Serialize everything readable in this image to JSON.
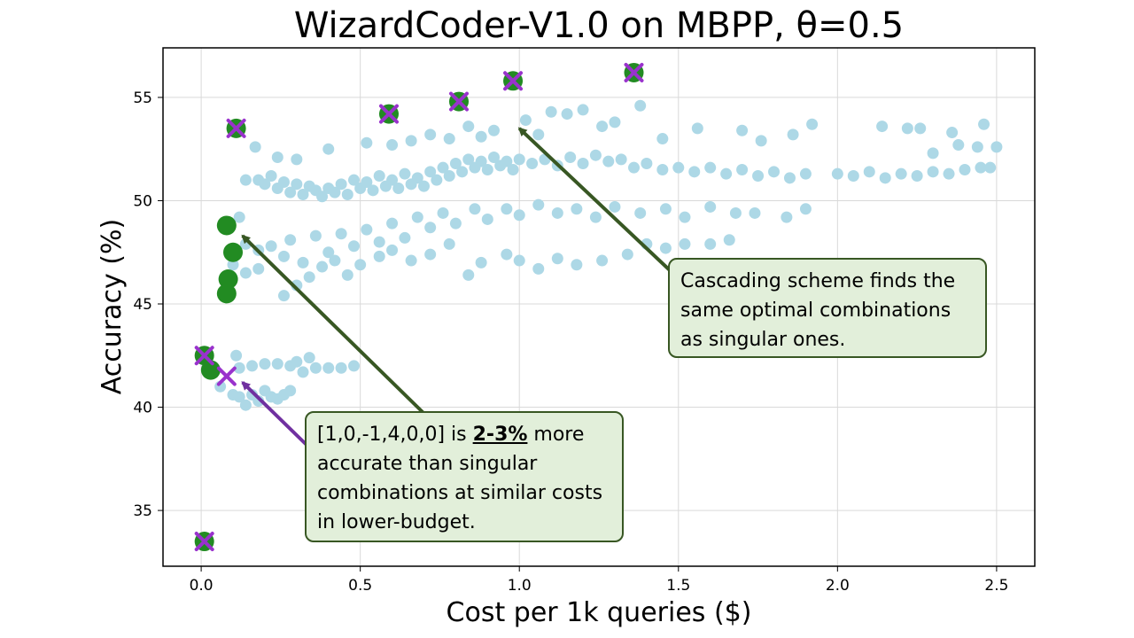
{
  "chart_data": {
    "type": "scatter",
    "title": "WizardCoder-V1.0 on MBPP, θ=0.5",
    "xlabel": "Cost per 1k queries ($)",
    "ylabel": "Accuracy (%)",
    "xlim": [
      -0.12,
      2.62
    ],
    "ylim": [
      32.3,
      57.4
    ],
    "xticks": [
      0.0,
      0.5,
      1.0,
      1.5,
      2.0,
      2.5
    ],
    "xtick_labels": [
      "0.0",
      "0.5",
      "1.0",
      "1.5",
      "2.0",
      "2.5"
    ],
    "yticks": [
      35,
      40,
      45,
      50,
      55
    ],
    "ytick_labels": [
      "35",
      "40",
      "45",
      "50",
      "55"
    ],
    "grid": true,
    "colors": {
      "background_points": "#add8e6",
      "green_points": "#228b22",
      "purple_marks": "#9932cc",
      "arrow_dark_green": "#385723",
      "arrow_purple": "#7030a0",
      "callout_fill": "#e2efda",
      "callout_border": "#385723"
    },
    "series": [
      {
        "role": "all-combinations",
        "marker": "circle",
        "color": "#add8e6",
        "points": [
          [
            0.14,
            51.0
          ],
          [
            0.18,
            51.0
          ],
          [
            0.2,
            50.8
          ],
          [
            0.22,
            51.2
          ],
          [
            0.24,
            50.6
          ],
          [
            0.26,
            50.9
          ],
          [
            0.28,
            50.4
          ],
          [
            0.3,
            50.8
          ],
          [
            0.32,
            50.3
          ],
          [
            0.34,
            50.7
          ],
          [
            0.36,
            50.5
          ],
          [
            0.38,
            50.2
          ],
          [
            0.4,
            50.6
          ],
          [
            0.42,
            50.4
          ],
          [
            0.44,
            50.8
          ],
          [
            0.46,
            50.3
          ],
          [
            0.48,
            51.0
          ],
          [
            0.5,
            50.6
          ],
          [
            0.52,
            50.9
          ],
          [
            0.54,
            50.5
          ],
          [
            0.56,
            51.2
          ],
          [
            0.58,
            50.7
          ],
          [
            0.6,
            51.0
          ],
          [
            0.62,
            50.6
          ],
          [
            0.64,
            51.3
          ],
          [
            0.66,
            50.8
          ],
          [
            0.68,
            51.1
          ],
          [
            0.7,
            50.7
          ],
          [
            0.72,
            51.4
          ],
          [
            0.74,
            51.0
          ],
          [
            0.76,
            51.6
          ],
          [
            0.78,
            51.2
          ],
          [
            0.8,
            51.8
          ],
          [
            0.82,
            51.4
          ],
          [
            0.84,
            52.0
          ],
          [
            0.86,
            51.6
          ],
          [
            0.88,
            51.9
          ],
          [
            0.9,
            51.5
          ],
          [
            0.92,
            52.1
          ],
          [
            0.94,
            51.7
          ],
          [
            0.96,
            51.9
          ],
          [
            0.98,
            51.5
          ],
          [
            1.0,
            52.0
          ],
          [
            1.04,
            51.8
          ],
          [
            1.08,
            52.0
          ],
          [
            1.12,
            51.7
          ],
          [
            1.16,
            52.1
          ],
          [
            1.2,
            51.8
          ],
          [
            1.24,
            52.2
          ],
          [
            1.28,
            51.9
          ],
          [
            1.32,
            52.0
          ],
          [
            1.36,
            51.6
          ],
          [
            1.4,
            51.8
          ],
          [
            1.45,
            51.5
          ],
          [
            1.5,
            51.6
          ],
          [
            1.55,
            51.4
          ],
          [
            1.6,
            51.6
          ],
          [
            1.65,
            51.3
          ],
          [
            1.7,
            51.5
          ],
          [
            1.75,
            51.2
          ],
          [
            1.8,
            51.4
          ],
          [
            1.85,
            51.1
          ],
          [
            1.9,
            51.3
          ],
          [
            2.0,
            51.3
          ],
          [
            2.05,
            51.2
          ],
          [
            2.1,
            51.4
          ],
          [
            2.15,
            51.1
          ],
          [
            2.2,
            51.3
          ],
          [
            2.25,
            51.2
          ],
          [
            2.3,
            51.4
          ],
          [
            2.35,
            51.3
          ],
          [
            2.4,
            51.5
          ],
          [
            2.45,
            51.6
          ],
          [
            2.48,
            51.6
          ],
          [
            0.17,
            52.6
          ],
          [
            0.24,
            52.1
          ],
          [
            0.3,
            52.0
          ],
          [
            0.4,
            52.5
          ],
          [
            0.52,
            52.8
          ],
          [
            0.6,
            52.7
          ],
          [
            0.66,
            52.9
          ],
          [
            0.72,
            53.2
          ],
          [
            0.78,
            53.0
          ],
          [
            0.84,
            53.6
          ],
          [
            0.88,
            53.1
          ],
          [
            0.92,
            53.4
          ],
          [
            1.02,
            53.9
          ],
          [
            1.06,
            53.2
          ],
          [
            1.1,
            54.3
          ],
          [
            1.15,
            54.2
          ],
          [
            1.2,
            54.4
          ],
          [
            1.26,
            53.6
          ],
          [
            1.3,
            53.8
          ],
          [
            1.38,
            54.6
          ],
          [
            1.45,
            53.0
          ],
          [
            1.56,
            53.5
          ],
          [
            1.7,
            53.4
          ],
          [
            1.76,
            52.9
          ],
          [
            1.86,
            53.2
          ],
          [
            1.92,
            53.7
          ],
          [
            2.14,
            53.6
          ],
          [
            2.22,
            53.5
          ],
          [
            2.26,
            53.5
          ],
          [
            2.36,
            53.3
          ],
          [
            2.46,
            53.7
          ],
          [
            2.38,
            52.7
          ],
          [
            2.44,
            52.6
          ],
          [
            2.5,
            52.6
          ],
          [
            2.3,
            52.3
          ],
          [
            0.12,
            49.2
          ],
          [
            0.14,
            47.9
          ],
          [
            0.18,
            47.6
          ],
          [
            0.22,
            47.8
          ],
          [
            0.26,
            47.3
          ],
          [
            0.28,
            48.1
          ],
          [
            0.32,
            47.0
          ],
          [
            0.36,
            48.3
          ],
          [
            0.4,
            47.5
          ],
          [
            0.44,
            48.4
          ],
          [
            0.48,
            47.8
          ],
          [
            0.52,
            48.6
          ],
          [
            0.56,
            48.0
          ],
          [
            0.6,
            48.9
          ],
          [
            0.64,
            48.2
          ],
          [
            0.68,
            49.2
          ],
          [
            0.72,
            48.7
          ],
          [
            0.76,
            49.4
          ],
          [
            0.8,
            48.9
          ],
          [
            0.86,
            49.6
          ],
          [
            0.9,
            49.1
          ],
          [
            0.96,
            49.6
          ],
          [
            1.0,
            49.3
          ],
          [
            1.06,
            49.8
          ],
          [
            1.12,
            49.4
          ],
          [
            1.18,
            49.6
          ],
          [
            1.24,
            49.2
          ],
          [
            1.3,
            49.7
          ],
          [
            1.38,
            49.4
          ],
          [
            1.46,
            49.6
          ],
          [
            1.52,
            49.2
          ],
          [
            1.6,
            49.7
          ],
          [
            1.68,
            49.4
          ],
          [
            1.74,
            49.4
          ],
          [
            1.84,
            49.2
          ],
          [
            1.9,
            49.6
          ],
          [
            0.1,
            46.9
          ],
          [
            0.14,
            46.5
          ],
          [
            0.18,
            46.7
          ],
          [
            0.26,
            45.4
          ],
          [
            0.3,
            45.9
          ],
          [
            0.34,
            46.3
          ],
          [
            0.38,
            46.8
          ],
          [
            0.42,
            47.1
          ],
          [
            0.46,
            46.4
          ],
          [
            0.5,
            46.9
          ],
          [
            0.56,
            47.3
          ],
          [
            0.6,
            47.6
          ],
          [
            0.66,
            47.1
          ],
          [
            0.72,
            47.4
          ],
          [
            0.78,
            47.9
          ],
          [
            0.84,
            46.4
          ],
          [
            0.88,
            47.0
          ],
          [
            0.96,
            47.4
          ],
          [
            1.0,
            47.1
          ],
          [
            1.06,
            46.7
          ],
          [
            1.12,
            47.2
          ],
          [
            1.18,
            46.9
          ],
          [
            1.26,
            47.1
          ],
          [
            1.34,
            47.4
          ],
          [
            1.4,
            47.9
          ],
          [
            1.46,
            47.7
          ],
          [
            1.52,
            47.9
          ],
          [
            1.6,
            47.9
          ],
          [
            1.66,
            48.1
          ],
          [
            0.06,
            41.0
          ],
          [
            0.1,
            40.6
          ],
          [
            0.12,
            40.5
          ],
          [
            0.14,
            40.1
          ],
          [
            0.16,
            40.6
          ],
          [
            0.18,
            40.3
          ],
          [
            0.2,
            40.8
          ],
          [
            0.22,
            40.5
          ],
          [
            0.24,
            40.4
          ],
          [
            0.26,
            40.6
          ],
          [
            0.28,
            40.8
          ],
          [
            0.12,
            41.9
          ],
          [
            0.16,
            42.0
          ],
          [
            0.2,
            42.1
          ],
          [
            0.24,
            42.1
          ],
          [
            0.28,
            42.0
          ],
          [
            0.32,
            41.7
          ],
          [
            0.36,
            41.9
          ],
          [
            0.4,
            41.9
          ],
          [
            0.44,
            41.9
          ],
          [
            0.48,
            42.0
          ],
          [
            0.3,
            42.2
          ],
          [
            0.34,
            42.4
          ],
          [
            0.11,
            42.5
          ]
        ]
      },
      {
        "role": "green-points",
        "marker": "circle",
        "color": "#228b22",
        "points": [
          [
            0.08,
            48.8
          ],
          [
            0.1,
            47.5
          ],
          [
            0.085,
            46.2
          ],
          [
            0.08,
            45.5
          ],
          [
            0.03,
            41.8
          ],
          [
            0.01,
            42.5
          ],
          [
            0.01,
            33.5
          ],
          [
            0.11,
            53.5
          ],
          [
            0.59,
            54.2
          ],
          [
            0.81,
            54.8
          ],
          [
            0.98,
            55.8
          ],
          [
            1.36,
            56.2
          ]
        ]
      },
      {
        "role": "purple-marks",
        "marker": "x",
        "color": "#9932cc",
        "points": [
          [
            0.01,
            42.5
          ],
          [
            0.01,
            33.5
          ],
          [
            0.11,
            53.5
          ],
          [
            0.59,
            54.2
          ],
          [
            0.81,
            54.8
          ],
          [
            0.98,
            55.8
          ],
          [
            1.36,
            56.2
          ],
          [
            0.08,
            41.5
          ]
        ]
      }
    ],
    "annotations": [
      {
        "text": "Cascading scheme finds the same optimal combinations as singular ones.",
        "arrow_to": [
          1.0,
          53.5
        ],
        "arrow_color": "#385723"
      },
      {
        "text_pre": "[1,0,-1,4,0,0] is ",
        "text_bold": "2-3%",
        "text_post": " more accurate than singular combinations at similar costs in lower-budget.",
        "arrows": [
          {
            "to": [
              0.13,
              48.3
            ],
            "color": "#385723"
          },
          {
            "to": [
              0.13,
              41.2
            ],
            "color": "#7030a0"
          }
        ]
      }
    ]
  },
  "callouts": {
    "right": {
      "line1": "Cascading scheme finds the",
      "line2": "same optimal combinations",
      "line3": "as singular ones."
    },
    "bottom": {
      "line1_pre": "[1,0,-1,4,0,0] is ",
      "line1_bold": "2-3%",
      "line1_post": " more",
      "line2": "accurate than singular",
      "line3": "combinations at similar costs",
      "line4": "in lower-budget."
    }
  }
}
